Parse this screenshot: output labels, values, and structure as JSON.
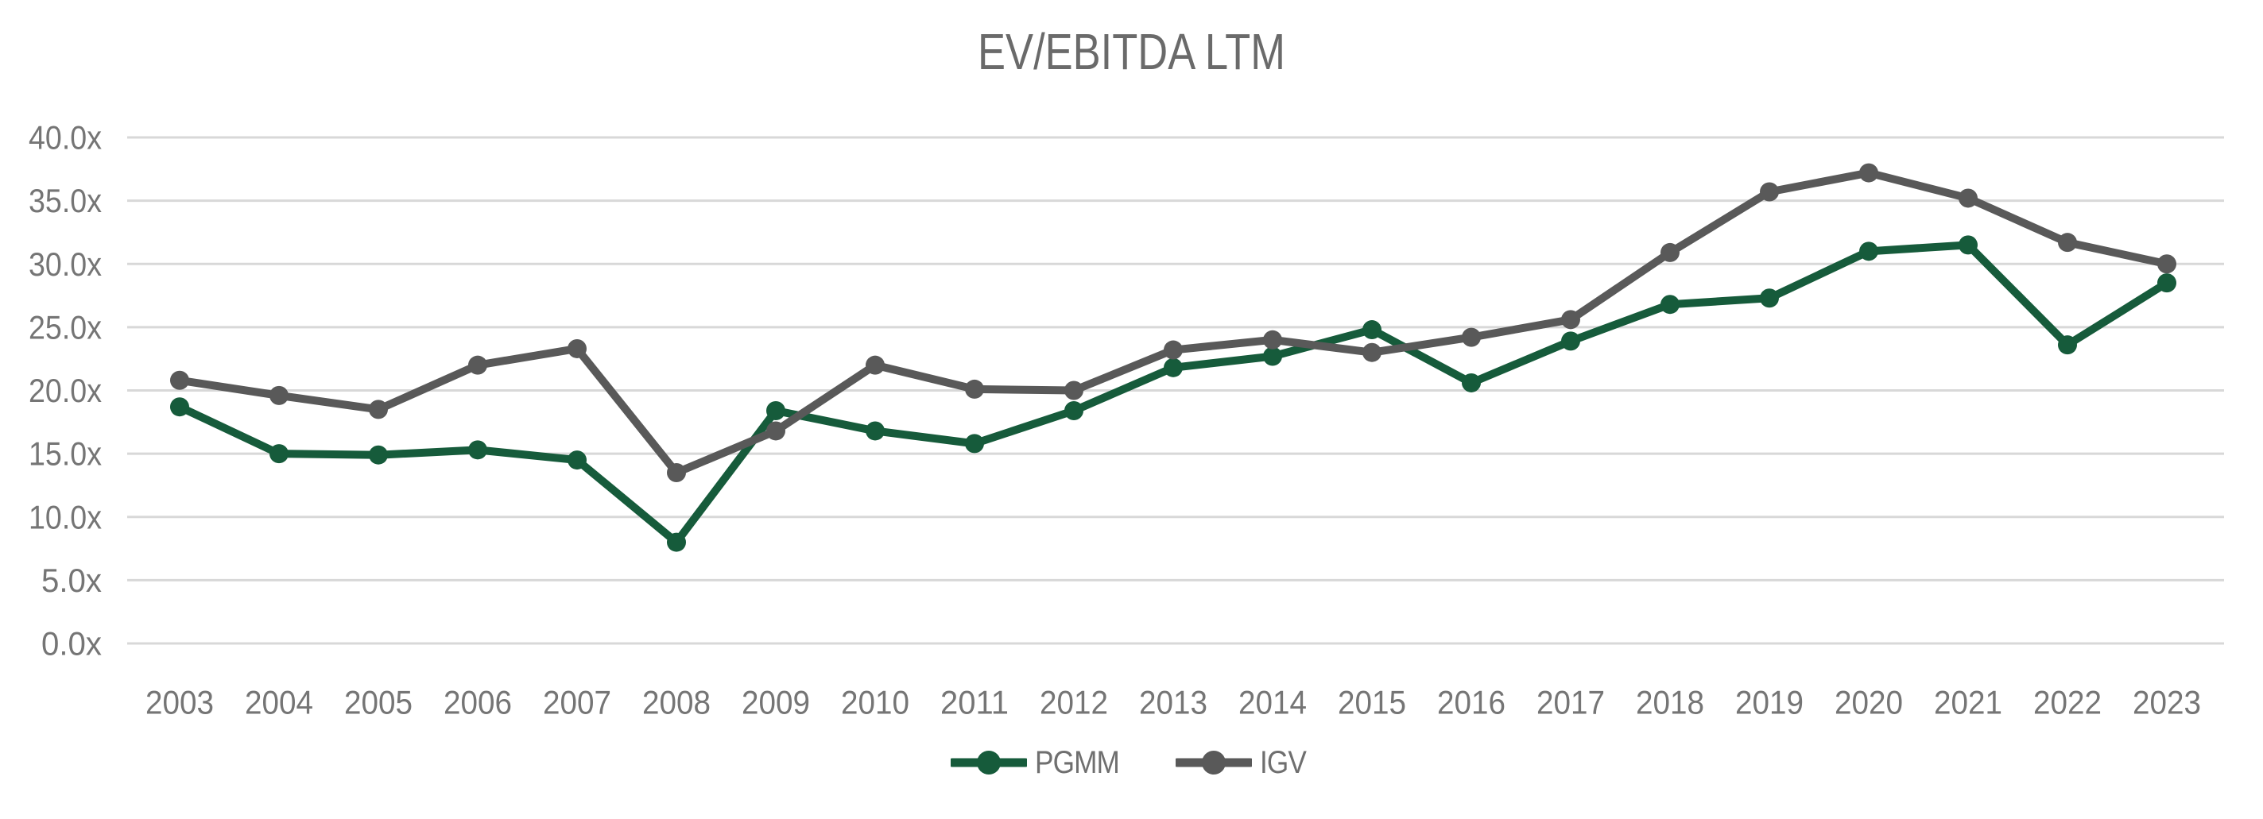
{
  "page": {
    "background": "#ffffff"
  },
  "chart_data": {
    "type": "line",
    "title": "EV/EBITDA LTM",
    "categories": [
      "2003",
      "2004",
      "2005",
      "2006",
      "2007",
      "2008",
      "2009",
      "2010",
      "2011",
      "2012",
      "2013",
      "2014",
      "2015",
      "2016",
      "2017",
      "2018",
      "2019",
      "2020",
      "2021",
      "2022",
      "2023"
    ],
    "series": [
      {
        "name": "PGMM",
        "color": "#165b3b",
        "values": [
          18.7,
          15.0,
          14.9,
          15.3,
          14.5,
          8.0,
          18.4,
          16.8,
          15.8,
          18.4,
          21.8,
          22.7,
          24.8,
          20.6,
          23.9,
          26.8,
          27.3,
          31.0,
          31.5,
          23.6,
          28.5
        ]
      },
      {
        "name": "IGV",
        "color": "#595959",
        "values": [
          20.8,
          19.6,
          18.5,
          22.0,
          23.3,
          13.5,
          16.8,
          22.0,
          20.1,
          20.0,
          23.2,
          24.0,
          23.0,
          24.2,
          25.6,
          30.9,
          35.7,
          37.2,
          35.2,
          31.7,
          30.0
        ]
      }
    ],
    "y_tick_labels": [
      "40.0x",
      "35.0x",
      "30.0x",
      "25.0x",
      "20.0x",
      "15.0x",
      "10.0x",
      "5.0x",
      "0.0x"
    ],
    "ylim": [
      0,
      40
    ],
    "ytick_step": 5,
    "grid": true,
    "legend_position": "bottom",
    "xlabel": "",
    "ylabel": ""
  },
  "styles": {
    "title_color": "#6a6a6a",
    "axis_label_color": "#757575",
    "legend_label_color": "#6f6f6f",
    "grid_color": "#d8d8d8"
  }
}
